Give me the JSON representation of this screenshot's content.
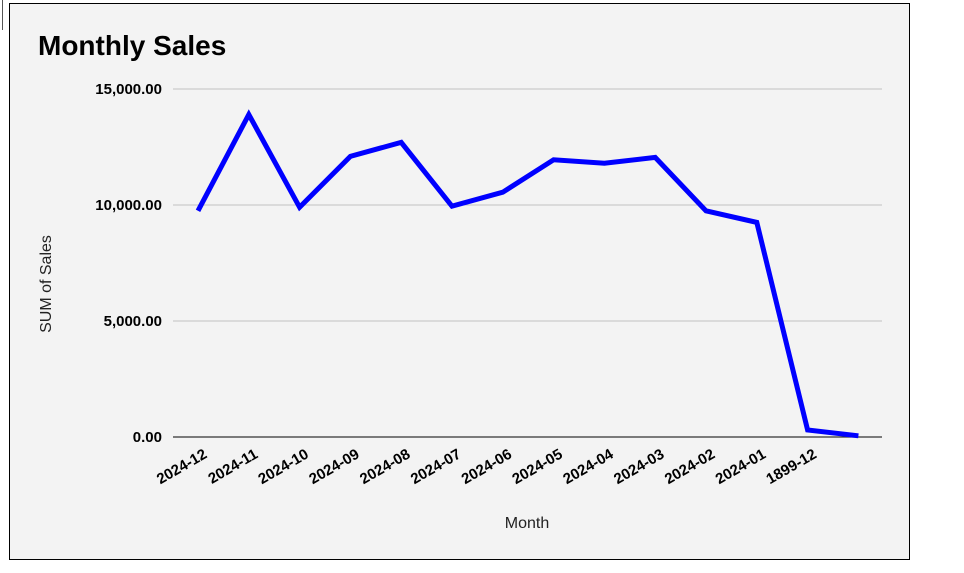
{
  "chart_data": {
    "type": "line",
    "title": "Monthly Sales",
    "xlabel": "Month",
    "ylabel": "SUM of Sales",
    "ylim": [
      0,
      15000
    ],
    "yticks": [
      0,
      5000,
      10000,
      15000
    ],
    "ytick_labels": [
      "0.00",
      "5,000.00",
      "10,000.00",
      "15,000.00"
    ],
    "categories": [
      "2024-12",
      "2024-11",
      "2024-10",
      "2024-09",
      "2024-08",
      "2024-07",
      "2024-06",
      "2024-05",
      "2024-04",
      "2024-03",
      "2024-02",
      "2024-01",
      "1899-12",
      ""
    ],
    "series": [
      {
        "name": "",
        "color": "#0000ff",
        "values": [
          9750,
          13900,
          9900,
          12100,
          12700,
          9950,
          10550,
          11950,
          11800,
          12050,
          9750,
          9250,
          300,
          50
        ]
      }
    ],
    "grid": true,
    "legend": "none",
    "background": "#f3f3f3",
    "gridline_color": "#c0c0c0"
  }
}
